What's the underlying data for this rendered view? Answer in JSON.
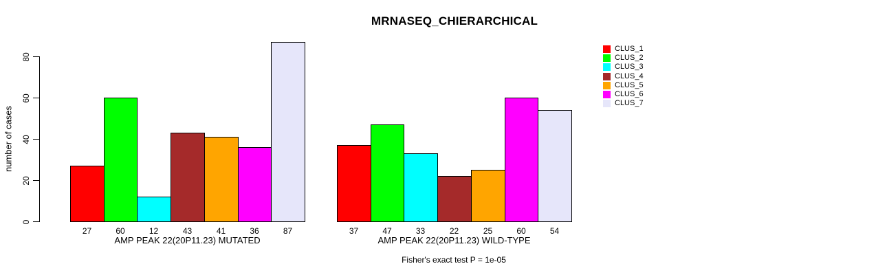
{
  "chart_data": {
    "type": "bar",
    "title": "MRNASEQ_CHIERARCHICAL",
    "ylabel": "number of cases",
    "xlabel": "",
    "ylim": [
      0,
      87
    ],
    "yticks": [
      0,
      20,
      40,
      60,
      80
    ],
    "grid": false,
    "legend_position": "right-inside",
    "clusters": [
      {
        "name": "CLUS_1",
        "color": "#FF0000"
      },
      {
        "name": "CLUS_2",
        "color": "#00FF00"
      },
      {
        "name": "CLUS_3",
        "color": "#00FFFF"
      },
      {
        "name": "CLUS_4",
        "color": "#A52A2A"
      },
      {
        "name": "CLUS_5",
        "color": "#FFA500"
      },
      {
        "name": "CLUS_6",
        "color": "#FF00FF"
      },
      {
        "name": "CLUS_7",
        "color": "#E6E6FA"
      }
    ],
    "groups": [
      {
        "label": "AMP PEAK 22(20P11.23) MUTATED",
        "values": [
          27,
          60,
          12,
          43,
          41,
          36,
          87
        ]
      },
      {
        "label": "AMP PEAK 22(20P11.23) WILD-TYPE",
        "values": [
          37,
          47,
          33,
          22,
          25,
          60,
          54
        ]
      }
    ],
    "annotation": "Fisher's exact test P = 1e-05"
  }
}
